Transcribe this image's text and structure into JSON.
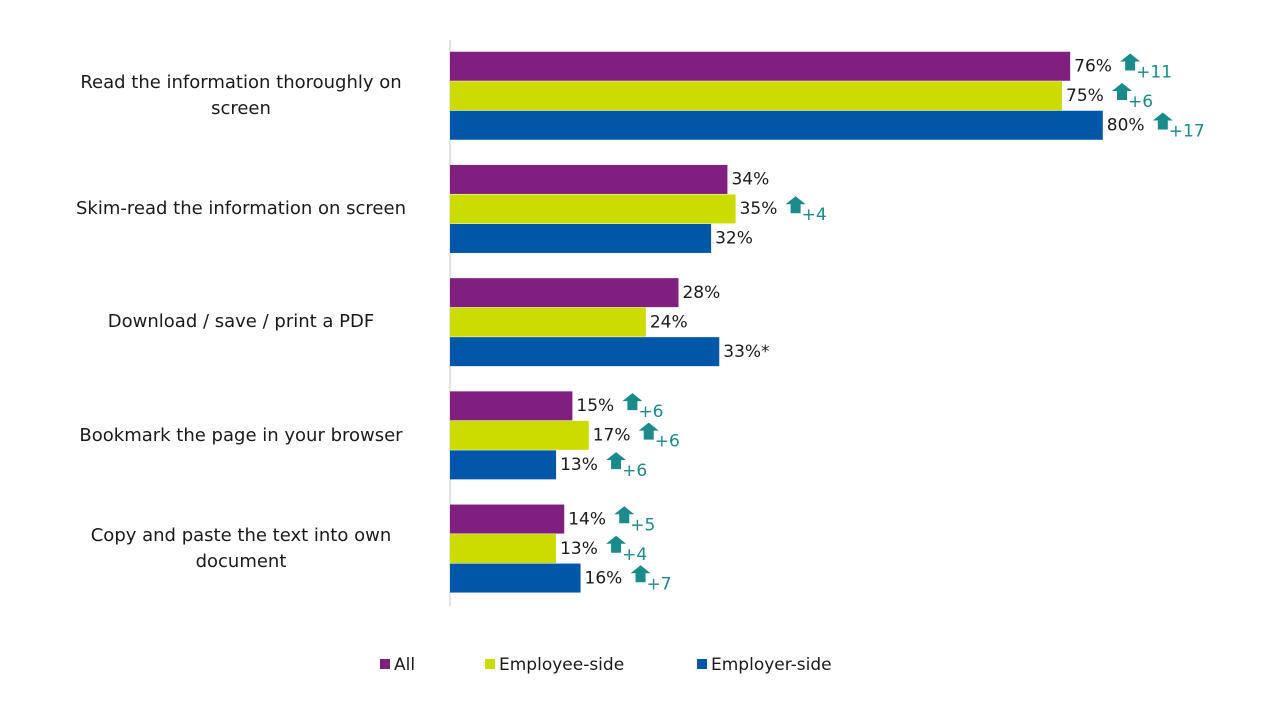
{
  "chart_data": {
    "type": "bar",
    "orientation": "horizontal",
    "categories": [
      "Read the information thoroughly on screen",
      "Skim-read the information on screen",
      "Download / save / print a PDF",
      "Bookmark the page in your browser",
      "Copy and paste the text into own document"
    ],
    "series": [
      {
        "name": "All",
        "color": "#7f1f7f",
        "values": [
          76,
          34,
          28,
          15,
          14
        ],
        "value_labels": [
          "76%",
          "34%",
          "28%",
          "15%",
          "14%"
        ],
        "changes": [
          "+11",
          null,
          null,
          "+6",
          "+5"
        ]
      },
      {
        "name": "Employee-side",
        "color": "#cddc00",
        "values": [
          75,
          35,
          24,
          17,
          13
        ],
        "value_labels": [
          "75%",
          "35%",
          "24%",
          "17%",
          "13%"
        ],
        "changes": [
          "+6",
          "+4",
          null,
          "+6",
          "+4"
        ]
      },
      {
        "name": "Employer-side",
        "color": "#0057a8",
        "values": [
          80,
          32,
          33,
          13,
          16
        ],
        "value_labels": [
          "80%",
          "32%",
          "33%*",
          "13%",
          "16%"
        ],
        "changes": [
          "+17",
          null,
          null,
          "+6",
          "+7"
        ]
      }
    ],
    "xlim": [
      0,
      100
    ],
    "change_color": "#1a8a8a",
    "legend": "bottom"
  }
}
